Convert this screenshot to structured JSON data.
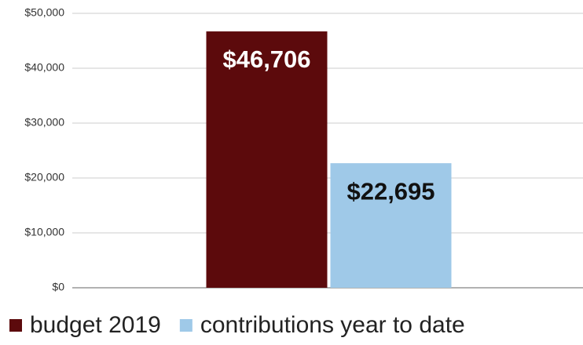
{
  "chart_data": {
    "type": "bar",
    "categories": [
      null
    ],
    "series": [
      {
        "name": "budget 2019",
        "color": "#5c0a0c",
        "values": [
          46706
        ],
        "value_labels": [
          "$46,706"
        ]
      },
      {
        "name": "contributions year to date",
        "color": "#9fc9e8",
        "values": [
          22695
        ],
        "value_labels": [
          "$22,695"
        ]
      }
    ],
    "ylim": [
      0,
      50000
    ],
    "yticks": [
      {
        "value": 0,
        "label": "$0"
      },
      {
        "value": 10000,
        "label": "$10,000"
      },
      {
        "value": 20000,
        "label": "$20,000"
      },
      {
        "value": 30000,
        "label": "$30,000"
      },
      {
        "value": 40000,
        "label": "$40,000"
      },
      {
        "value": 50000,
        "label": "$50,000"
      }
    ],
    "grid": true,
    "legend": "bottom"
  }
}
